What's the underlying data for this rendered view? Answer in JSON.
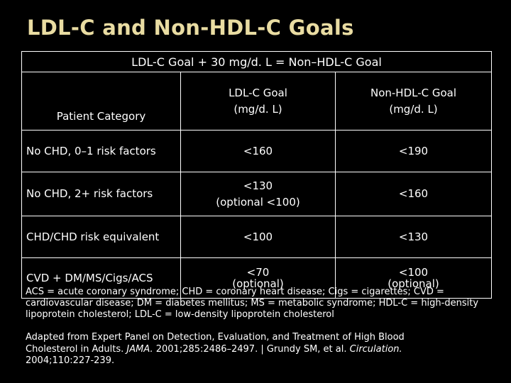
{
  "title": "LDL-C and Non-HDL-C Goals",
  "table": {
    "banner": "LDL-C Goal + 30 mg/d. L = Non–HDL-C Goal",
    "headers": {
      "category": "Patient Category",
      "ldl_line1": "LDL-C Goal",
      "ldl_line2": "(mg/d. L)",
      "nonhdl_line1": "Non-HDL-C Goal",
      "nonhdl_line2": "(mg/d. L)"
    },
    "rows": [
      {
        "category": "No CHD, 0–1 risk factors",
        "ldl": "<160",
        "ldl_note": "",
        "nonhdl": "<190",
        "nonhdl_note": ""
      },
      {
        "category": "No CHD, 2+ risk factors",
        "ldl": "<130",
        "ldl_note": "(optional <100)",
        "nonhdl": "<160",
        "nonhdl_note": ""
      },
      {
        "category": "CHD/CHD risk equivalent",
        "ldl": "<100",
        "ldl_note": "",
        "nonhdl": "<130",
        "nonhdl_note": ""
      },
      {
        "category": "CVD + DM/MS/Cigs/ACS",
        "ldl": "<70",
        "ldl_note": "(optional)",
        "nonhdl": "<100",
        "nonhdl_note": "(optional)"
      }
    ]
  },
  "footnote": "ACS = acute coronary syndrome; CHD = coronary heart disease; Cigs = cigarettes; CVD = cardiovascular disease; DM = diabetes mellitus; MS = metabolic syndrome; HDL-C = high-density lipoprotein cholesterol; LDL-C = low-density lipoprotein cholesterol",
  "citation": {
    "part1": "Adapted from Expert Panel on Detection, Evaluation, and Treatment of High Blood Cholesterol in Adults. ",
    "journal1": "JAMA.",
    "part2": " 2001;285:2486–2497. | Grundy SM, et al. ",
    "journal2": "Circulation.",
    "part3": " 2004;110:227-239."
  },
  "colors": {
    "background": "#000000",
    "title": "#e9dca2",
    "text": "#ffffff"
  }
}
